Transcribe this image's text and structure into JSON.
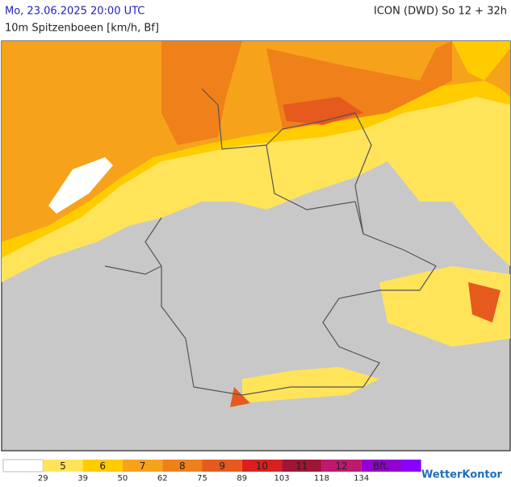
{
  "header": {
    "datetime": "Mo, 23.06.2025 20:00 UTC",
    "model": "ICON (DWD) So 12 + 32h",
    "subtitle": "10m Spitzenboeen [km/h, Bf]"
  },
  "legend": {
    "colors": [
      "#ffffff",
      "#ffe45a",
      "#ffcc00",
      "#f7a21b",
      "#f0801a",
      "#e65a1e",
      "#dc1e1e",
      "#a01535",
      "#c0186e",
      "#9400d3",
      "#8a00ff"
    ],
    "labels": [
      "5",
      "6",
      "7",
      "8",
      "9",
      "10",
      "11",
      "12",
      "Bft."
    ],
    "thresholds": [
      29,
      39,
      50,
      62,
      75,
      89,
      103,
      118,
      134
    ]
  },
  "logo": "WetterKontor"
}
